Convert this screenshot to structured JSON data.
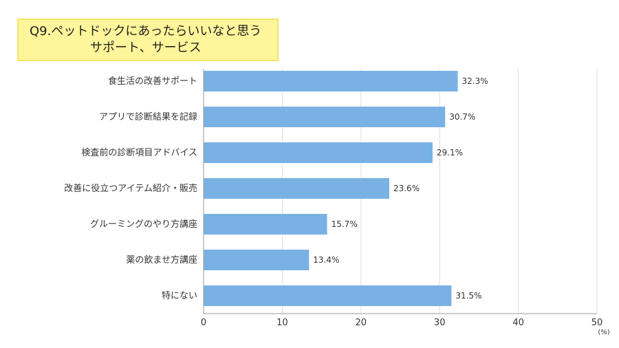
{
  "title": {
    "line1": "Q9.ペットドックにあったらいいなと思う",
    "line2": "サポート、サービス"
  },
  "chart_data": {
    "type": "bar",
    "orientation": "horizontal",
    "categories": [
      "食生活の改善サポート",
      "アプリで診断結果を記録",
      "検査前の診断項目アドバイス",
      "改善に役立つアイテム紹介・販売",
      "グルーミングのやり方講座",
      "薬の飲ませ方講座",
      "特にない"
    ],
    "values": [
      32.3,
      30.7,
      29.1,
      23.6,
      15.7,
      13.4,
      31.5
    ],
    "value_labels": [
      "32.3%",
      "30.7%",
      "29.1%",
      "23.6%",
      "15.7%",
      "13.4%",
      "31.5%"
    ],
    "xlim": [
      0,
      50
    ],
    "xticks": [
      0,
      10,
      20,
      30,
      40,
      50
    ],
    "unit": "(%)",
    "grid": true,
    "bar_color": "#79b1e4",
    "grid_color": "#dddddd"
  }
}
